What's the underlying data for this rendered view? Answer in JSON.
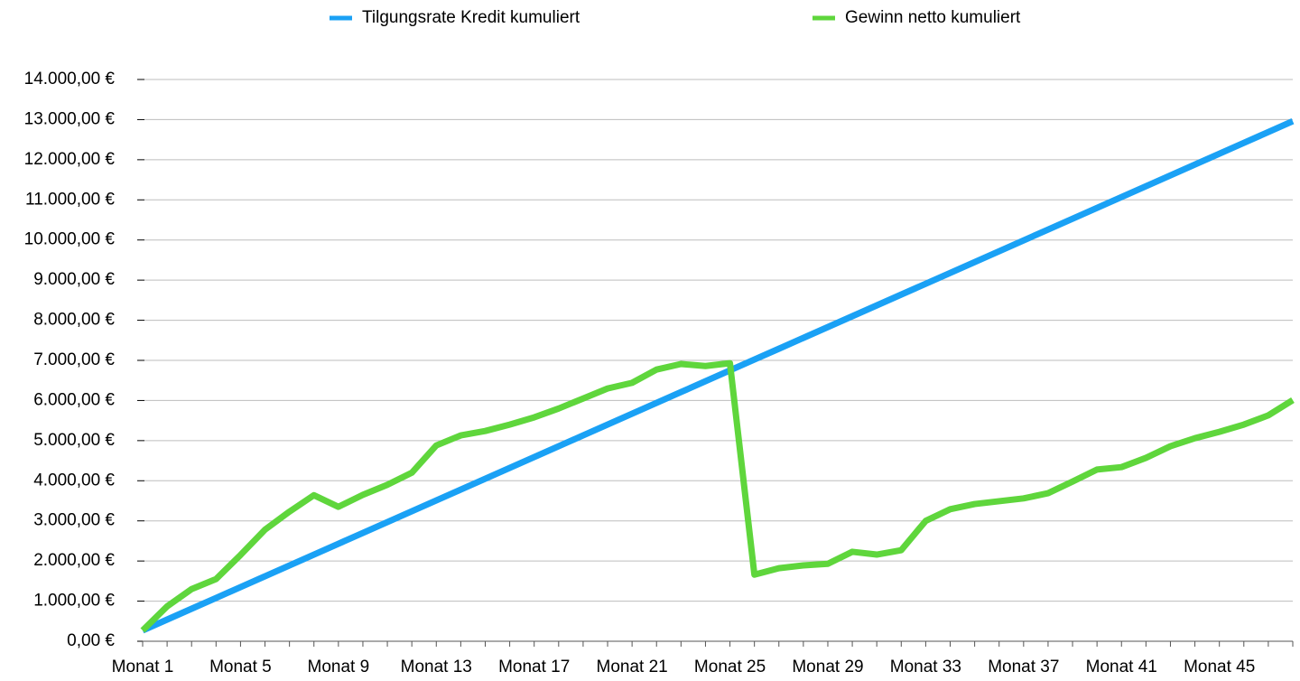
{
  "chart_data": {
    "type": "line",
    "categories": [
      "Monat 1",
      null,
      null,
      null,
      "Monat 5",
      null,
      null,
      null,
      "Monat 9",
      null,
      null,
      null,
      "Monat 13",
      null,
      null,
      null,
      "Monat 17",
      null,
      null,
      null,
      "Monat 21",
      null,
      null,
      null,
      "Monat 25",
      null,
      null,
      null,
      "Monat 29",
      null,
      null,
      null,
      "Monat 33",
      null,
      null,
      null,
      "Monat 37",
      null,
      null,
      null,
      "Monat 41",
      null,
      null,
      null,
      "Monat 45",
      null,
      null,
      null
    ],
    "series": [
      {
        "name": "Tilgungsrate Kredit kumuliert",
        "color": "#1aa1f5",
        "values": [
          270,
          540,
          810,
          1080,
          1350,
          1620,
          1890,
          2160,
          2430,
          2700,
          2970,
          3240,
          3510,
          3780,
          4050,
          4320,
          4590,
          4860,
          5130,
          5400,
          5670,
          5940,
          6210,
          6480,
          6750,
          7020,
          7290,
          7560,
          7830,
          8100,
          8370,
          8640,
          8910,
          9180,
          9450,
          9720,
          9990,
          10260,
          10530,
          10800,
          11070,
          11340,
          11610,
          11880,
          12150,
          12420,
          12690,
          12960
        ]
      },
      {
        "name": "Gewinn netto kumuliert",
        "color": "#5fd63c",
        "values": [
          270,
          870,
          1300,
          1550,
          2150,
          2780,
          3230,
          3640,
          3350,
          3650,
          3900,
          4200,
          4880,
          5130,
          5240,
          5400,
          5580,
          5800,
          6050,
          6300,
          6440,
          6770,
          6910,
          6860,
          6930,
          1660,
          1820,
          1890,
          1930,
          2230,
          2160,
          2270,
          3000,
          3290,
          3420,
          3490,
          3560,
          3690,
          3980,
          4280,
          4340,
          4570,
          4860,
          5060,
          5220,
          5400,
          5630,
          6010
        ]
      }
    ],
    "ylim": [
      0,
      14000
    ],
    "yticks": [
      {
        "value": 0,
        "label": "0,00 €"
      },
      {
        "value": 1000,
        "label": "1.000,00 €"
      },
      {
        "value": 2000,
        "label": "2.000,00 €"
      },
      {
        "value": 3000,
        "label": "3.000,00 €"
      },
      {
        "value": 4000,
        "label": "4.000,00 €"
      },
      {
        "value": 5000,
        "label": "5.000,00 €"
      },
      {
        "value": 6000,
        "label": "6.000,00 €"
      },
      {
        "value": 7000,
        "label": "7.000,00 €"
      },
      {
        "value": 8000,
        "label": "8.000,00 €"
      },
      {
        "value": 9000,
        "label": "9.000,00 €"
      },
      {
        "value": 10000,
        "label": "10.000,00 €"
      },
      {
        "value": 11000,
        "label": "11.000,00 €"
      },
      {
        "value": 12000,
        "label": "12.000,00 €"
      },
      {
        "value": 13000,
        "label": "13.000,00 €"
      },
      {
        "value": 14000,
        "label": "14.000,00 €"
      }
    ],
    "grid": true,
    "legend": "top"
  }
}
